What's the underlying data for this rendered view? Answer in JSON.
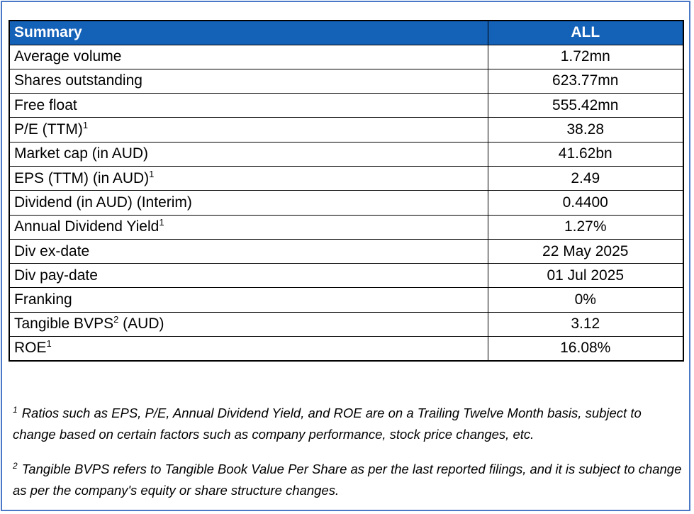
{
  "table": {
    "header": {
      "label": "Summary",
      "value": "ALL"
    },
    "rows": [
      {
        "label": "Average volume",
        "sup": "",
        "label_after": "",
        "value": "1.72mn"
      },
      {
        "label": "Shares outstanding",
        "sup": "",
        "label_after": "",
        "value": "623.77mn"
      },
      {
        "label": "Free float",
        "sup": "",
        "label_after": "",
        "value": "555.42mn"
      },
      {
        "label": "P/E (TTM)",
        "sup": "1",
        "label_after": "",
        "value": "38.28"
      },
      {
        "label": "Market cap (in AUD)",
        "sup": "",
        "label_after": "",
        "value": "41.62bn"
      },
      {
        "label": "EPS (TTM) (in AUD)",
        "sup": "1",
        "label_after": "",
        "value": "2.49"
      },
      {
        "label": "Dividend (in AUD) (Interim)",
        "sup": "",
        "label_after": "",
        "value": "0.4400"
      },
      {
        "label": "Annual Dividend Yield",
        "sup": "1",
        "label_after": "",
        "value": "1.27%"
      },
      {
        "label": "Div ex-date",
        "sup": "",
        "label_after": "",
        "value": "22 May 2025"
      },
      {
        "label": "Div pay-date",
        "sup": "",
        "label_after": "",
        "value": "01 Jul 2025"
      },
      {
        "label": "Franking",
        "sup": "",
        "label_after": "",
        "value": "0%"
      },
      {
        "label": "Tangible BVPS",
        "sup": "2",
        "label_after": " (AUD)",
        "value": "3.12"
      },
      {
        "label": "ROE",
        "sup": "1",
        "label_after": "",
        "value": "16.08%"
      }
    ]
  },
  "footnotes": [
    {
      "marker": "1",
      "text": "Ratios such as EPS, P/E,  Annual Dividend Yield, and ROE are on a Trailing Twelve Month basis, subject to change based on certain factors such as company performance, stock price changes, etc."
    },
    {
      "marker": "2",
      "text": "Tangible BVPS refers to Tangible Book Value Per Share as per the last reported filings, and it is subject to change as per the company's equity or share structure changes."
    }
  ],
  "colors": {
    "header_bg": "#1461b8",
    "frame_border": "#4a78c7"
  }
}
